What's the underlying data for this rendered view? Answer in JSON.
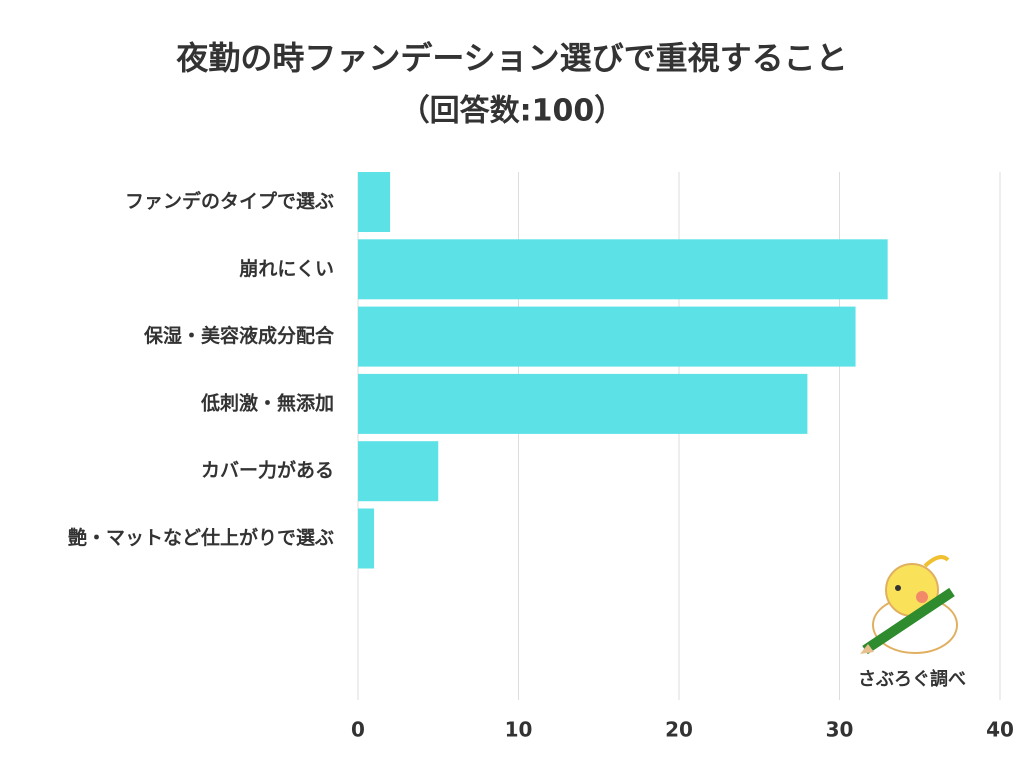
{
  "chart_data": {
    "type": "bar",
    "orientation": "horizontal",
    "title": "夜勤の時ファンデーション選びで重視すること",
    "subtitle": "（回答数:100）",
    "categories": [
      "ファンデのタイプで選ぶ",
      "崩れにくい",
      "保湿・美容液成分配合",
      "低刺激・無添加",
      "カバー力がある",
      "艶・マットなど仕上がりで選ぶ"
    ],
    "values": [
      2,
      33,
      31,
      28,
      5,
      1
    ],
    "color": "#5ce1e6",
    "xlim": [
      0,
      40
    ],
    "xticks": [
      0,
      10,
      20,
      30,
      40
    ],
    "grid": true,
    "source": "さぶろぐ調べ"
  }
}
